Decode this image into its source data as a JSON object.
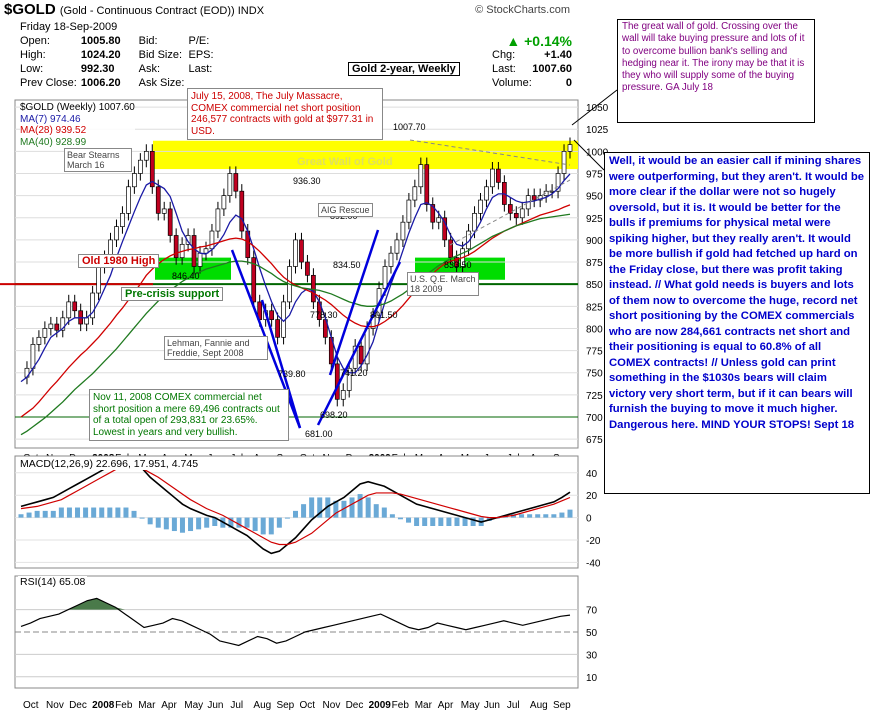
{
  "header": {
    "symbol": "$GOLD",
    "subtitle": "(Gold - Continuous Contract (EOD)) INDX",
    "copyright": "© StockCharts.com"
  },
  "quote": {
    "date": "Friday  18-Sep-2009",
    "open_label": "Open:",
    "open": "1005.80",
    "high_label": "High:",
    "high": "1024.20",
    "low_label": "Low:",
    "low": "992.30",
    "prev_label": "Prev Close:",
    "prev": "1006.20",
    "bid_label": "Bid:",
    "bidsize_label": "Bid Size:",
    "ask_label": "Ask:",
    "asksize_label": "Ask Size:",
    "pe_label": "P/E:",
    "eps_label": "EPS:",
    "last_label": "Last:",
    "change_pct": "+0.14%",
    "chg_label": "Chg:",
    "chg": "+1.40",
    "last2_label": "Last:",
    "last": "1007.60",
    "volume_label": "Volume:",
    "volume": "0",
    "up_color": "#00a000"
  },
  "chart_title": "Gold 2-year, Weekly",
  "legend": {
    "price": "$GOLD (Weekly) 1007.60",
    "ma7": "MA(7) 974.46",
    "ma28": "MA(28) 939.52",
    "ma40": "MA(40) 928.99"
  },
  "colors": {
    "ma7": "#1a1aa6",
    "ma28": "#d00000",
    "ma40": "#207a20",
    "wall": "#ffff00",
    "support": "#00dd00"
  },
  "annotations": {
    "july_massacre": "July 15, 2008, The July Massacre, COMEX commercial net short position 246,577 contracts with gold at $977.31 in USD.",
    "bear_stearns": "Bear Stearns March 16",
    "great_wall": "Great Wall of Gold",
    "aig": "AIG Rescue",
    "old_high": "Old 1980 High",
    "pre_crisis": "Pre-crisis support",
    "lehman": "Lehman, Fannie and Freddie, Sept 2008",
    "usqe": "U.S. Q.E. March 18 2009",
    "nov11": "Nov 11, 2008 COMEX commercial net short position a mere 69,496 contracts out of a total open of 293,831 or 23.65%.  Lowest in years and very bullish.",
    "top_comment": "The great wall of gold.  Crossing over the wall will take buying pressure and lots of it to overcome bullion bank's selling and hedging near it.  The irony may be that it is they who will supply some of the buying pressure.  GA July 18",
    "big_comment": "Well, it would be an easier call if mining shares were outperforming, but they aren't.  It would be more clear if the dollar were not so hugely oversold, but it is.  It would be better for the bulls if premiums for physical metal were spiking higher, but they really aren't.  It would be more bullish if gold had fetched up hard on the Friday close, but there was profit taking instead.  //  What gold needs is buyers and lots of them now to overcome the huge, record net short positioning by the COMEX commercials who are now 284,661 contracts net short and their positioning is equal to 60.8% of all COMEX contracts! //  Unless gold can print something in the $1030s bears will claim victory very short term, but if it can bears will furnish the buying to move it much higher. Dangerous here.  MIND YOUR STOPS!  Sept 18"
  },
  "price_labels": [
    "989.60",
    "1007.70",
    "936.30",
    "892.00",
    "846.40",
    "834.50",
    "833.50",
    "778.30",
    "801.50",
    "739.80",
    "741.20",
    "698.20",
    "681.00"
  ],
  "macd_label": "MACD(12,26,9) 22.696, 17.951, 4.745",
  "rsi_label": "RSI(14) 65.08",
  "chart_data": [
    {
      "type": "line",
      "title": "$GOLD (Weekly)",
      "x_tick_labels": [
        "Oct",
        "Nov",
        "Dec",
        "2008",
        "Feb",
        "Mar",
        "Apr",
        "May",
        "Jun",
        "Jul",
        "Aug",
        "Sep",
        "Oct",
        "Nov",
        "Dec",
        "2009",
        "Feb",
        "Mar",
        "Apr",
        "May",
        "Jun",
        "Jul",
        "Aug",
        "Sep"
      ],
      "y_ticks": [
        675,
        700,
        725,
        750,
        775,
        800,
        825,
        850,
        875,
        900,
        925,
        950,
        975,
        1000,
        1025,
        1050
      ],
      "ylim": [
        665,
        1058
      ],
      "series": [
        {
          "name": "$GOLD (Weekly)",
          "values": [
            745,
            755,
            782,
            790,
            800,
            805,
            798,
            812,
            830,
            820,
            805,
            812,
            840,
            870,
            880,
            900,
            915,
            930,
            960,
            975,
            990,
            1000,
            960,
            930,
            935,
            905,
            880,
            895,
            905,
            870,
            885,
            890,
            910,
            935,
            950,
            975,
            955,
            910,
            880,
            830,
            810,
            820,
            810,
            790,
            830,
            870,
            900,
            875,
            860,
            830,
            810,
            790,
            760,
            720,
            730,
            755,
            780,
            760,
            800,
            815,
            845,
            870,
            885,
            900,
            920,
            945,
            960,
            985,
            940,
            920,
            925,
            900,
            880,
            870,
            890,
            910,
            930,
            945,
            960,
            980,
            965,
            940,
            930,
            925,
            935,
            950,
            945,
            950,
            955,
            955,
            975,
            1000,
            1007.6
          ]
        },
        {
          "name": "MA(7)",
          "values": [
            740,
            745,
            755,
            765,
            778,
            790,
            795,
            800,
            808,
            812,
            812,
            812,
            818,
            830,
            845,
            860,
            880,
            898,
            915,
            932,
            948,
            962,
            966,
            962,
            958,
            949,
            930,
            910,
            898,
            890,
            885,
            884,
            889,
            896,
            906,
            920,
            928,
            924,
            910,
            890,
            868,
            848,
            830,
            815,
            808,
            815,
            830,
            840,
            845,
            842,
            830,
            812,
            790,
            768,
            755,
            750,
            750,
            758,
            770,
            785,
            808,
            830,
            850,
            868,
            888,
            908,
            925,
            940,
            942,
            938,
            930,
            920,
            905,
            895,
            893,
            898,
            908,
            920,
            935,
            948,
            952,
            952,
            948,
            944,
            942,
            943,
            944,
            946,
            948,
            952,
            958,
            967,
            974.46
          ]
        },
        {
          "name": "MA(28)",
          "values": [
            700,
            705,
            710,
            717,
            725,
            733,
            740,
            748,
            756,
            763,
            770,
            776,
            783,
            790,
            798,
            806,
            815,
            823,
            832,
            841,
            850,
            860,
            867,
            873,
            878,
            882,
            885,
            887,
            889,
            890,
            892,
            893,
            895,
            897,
            899,
            901,
            902,
            901,
            898,
            893,
            887,
            880,
            873,
            865,
            858,
            853,
            849,
            846,
            843,
            840,
            836,
            832,
            827,
            821,
            815,
            810,
            806,
            803,
            802,
            802,
            804,
            808,
            813,
            819,
            826,
            834,
            842,
            850,
            857,
            862,
            868,
            873,
            876,
            878,
            880,
            883,
            887,
            892,
            897,
            902,
            906,
            910,
            913,
            916,
            919,
            922,
            925,
            928,
            930,
            932,
            934,
            937,
            939.52
          ]
        },
        {
          "name": "MA(40)",
          "values": [
            680,
            684,
            689,
            694,
            699,
            705,
            711,
            717,
            724,
            731,
            737,
            743,
            749,
            756,
            763,
            770,
            777,
            785,
            793,
            801,
            809,
            817,
            824,
            831,
            837,
            843,
            848,
            853,
            857,
            861,
            864,
            867,
            869,
            871,
            873,
            875,
            876,
            876,
            875,
            873,
            870,
            866,
            862,
            857,
            853,
            850,
            848,
            846,
            845,
            844,
            843,
            841,
            839,
            836,
            833,
            830,
            828,
            826,
            825,
            825,
            826,
            828,
            831,
            835,
            839,
            844,
            850,
            856,
            861,
            866,
            871,
            875,
            879,
            882,
            885,
            888,
            892,
            896,
            900,
            904,
            907,
            910,
            913,
            916,
            918,
            920,
            922,
            924,
            925,
            926,
            927,
            928,
            928.99
          ]
        }
      ]
    },
    {
      "type": "line",
      "title": "MACD(12,26,9)",
      "y_ticks": [
        -40,
        -20,
        0,
        20,
        40
      ],
      "ylim": [
        -45,
        55
      ],
      "series": [
        {
          "name": "MACD",
          "values": [
            10,
            12,
            14,
            16,
            18,
            22,
            26,
            30,
            34,
            38,
            42,
            46,
            50,
            52,
            50,
            44,
            36,
            30,
            24,
            18,
            12,
            8,
            5,
            2,
            0,
            -4,
            -8,
            -12,
            -16,
            -22,
            -28,
            -32,
            -30,
            -24,
            -18,
            -10,
            -2,
            4,
            10,
            14,
            18,
            24,
            30,
            32,
            30,
            28,
            24,
            20,
            16,
            12,
            10,
            8,
            6,
            4,
            2,
            0,
            -2,
            -4,
            -2,
            0,
            2,
            4,
            6,
            8,
            10,
            12,
            14,
            18,
            22.696
          ]
        },
        {
          "name": "Signal",
          "values": [
            8,
            9,
            10,
            12,
            14,
            16,
            20,
            24,
            28,
            32,
            36,
            40,
            44,
            46,
            46,
            44,
            40,
            36,
            31,
            26,
            21,
            16,
            12,
            8,
            5,
            2,
            -2,
            -6,
            -10,
            -14,
            -18,
            -22,
            -24,
            -24,
            -22,
            -18,
            -14,
            -8,
            -2,
            4,
            8,
            12,
            16,
            20,
            22,
            22,
            22,
            21,
            19,
            17,
            15,
            13,
            11,
            9,
            7,
            5,
            3,
            1,
            0,
            0,
            1,
            2,
            4,
            6,
            8,
            10,
            12,
            15,
            17.951
          ]
        }
      ]
    },
    {
      "type": "line",
      "title": "RSI(14)",
      "y_ticks": [
        10,
        30,
        50,
        70
      ],
      "ylim": [
        0,
        100
      ],
      "series": [
        {
          "name": "RSI",
          "values": [
            55,
            58,
            62,
            64,
            66,
            70,
            74,
            78,
            80,
            76,
            72,
            66,
            60,
            54,
            56,
            58,
            62,
            60,
            56,
            52,
            48,
            42,
            40,
            38,
            42,
            46,
            44,
            40,
            42,
            46,
            50,
            52,
            54,
            56,
            58,
            60,
            62,
            64,
            66,
            62,
            58,
            54,
            52,
            54,
            58,
            56,
            54,
            52,
            54,
            56,
            58,
            60,
            58,
            56,
            58,
            60,
            62,
            64,
            65.08
          ]
        }
      ]
    }
  ]
}
